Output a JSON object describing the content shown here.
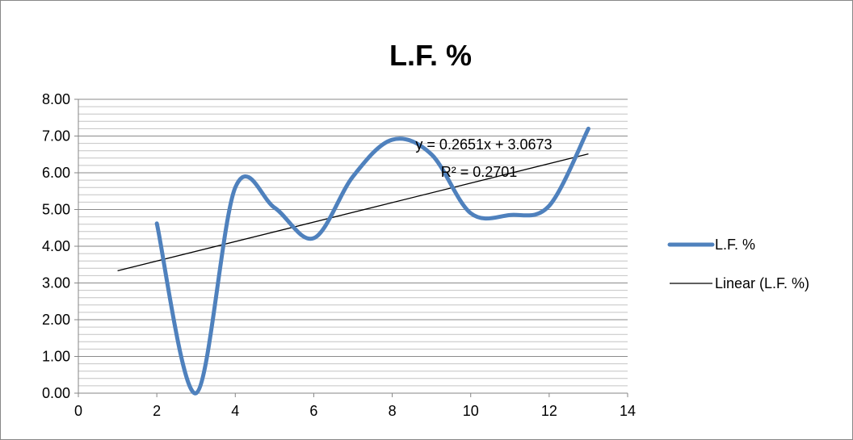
{
  "chart_data": {
    "type": "line",
    "title": "L.F. %",
    "xlabel": "",
    "ylabel": "",
    "xlim": [
      0,
      14
    ],
    "ylim": [
      0,
      8
    ],
    "x_ticks": [
      "0",
      "2",
      "4",
      "6",
      "8",
      "10",
      "12",
      "14"
    ],
    "y_ticks": [
      "0.00",
      "1.00",
      "2.00",
      "3.00",
      "4.00",
      "5.00",
      "6.00",
      "7.00",
      "8.00"
    ],
    "y_minor_step": 0.2,
    "grid": "horizontal",
    "series": [
      {
        "name": "L.F. %",
        "color": "#4f81bd",
        "smooth": true,
        "x": [
          2,
          3,
          4,
          5,
          6,
          7,
          8,
          9,
          10,
          11,
          12,
          13
        ],
        "y": [
          4.62,
          0.0,
          5.6,
          5.05,
          4.22,
          5.9,
          6.9,
          6.5,
          4.9,
          4.85,
          5.1,
          7.2
        ]
      }
    ],
    "trendline": {
      "name": "Linear (L.F. %)",
      "color": "#000000",
      "slope": 0.2651,
      "intercept": 3.0673,
      "x_range": [
        1,
        13
      ],
      "equation_label": "y = 0.2651x + 3.0673",
      "r2_label": "R² = 0.2701"
    },
    "legend": {
      "position": "right",
      "entries": [
        "L.F. %",
        "Linear (L.F. %)"
      ]
    }
  }
}
